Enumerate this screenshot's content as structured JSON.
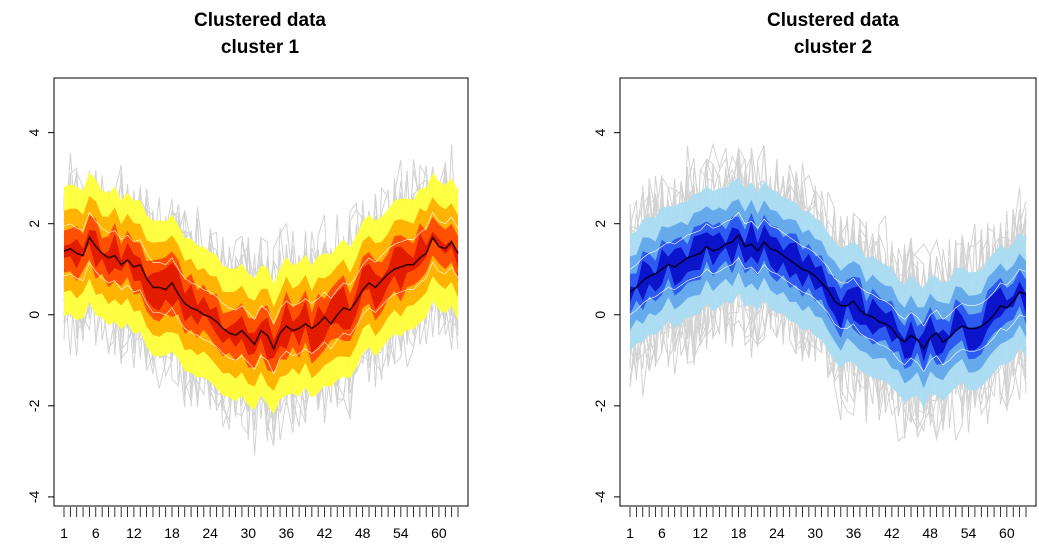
{
  "panels": [
    {
      "title_line1": "Clustered data",
      "title_line2": "cluster 1",
      "palette": "heat",
      "colors": {
        "outer": "#ffff3a",
        "mid": "#ffb000",
        "inner": "#ff4a00",
        "core": "#e21900",
        "median": "#3b0000",
        "background_lines": "#d3d3d3"
      }
    },
    {
      "title_line1": "Clustered data",
      "title_line2": "cluster 2",
      "palette": "blue",
      "colors": {
        "outer": "#a9dcf3",
        "mid": "#62a6ea",
        "inner": "#2a55f0",
        "core": "#0a10c8",
        "median": "#000035",
        "background_lines": "#d3d3d3"
      }
    }
  ],
  "chart_data": [
    {
      "type": "area",
      "title": "Clustered data\ncluster 1",
      "x_range": [
        1,
        62
      ],
      "x_tick_labels": [
        "1",
        "6",
        "12",
        "18",
        "24",
        "30",
        "36",
        "42",
        "48",
        "54",
        "60"
      ],
      "x_ticks": [
        1,
        6,
        12,
        18,
        24,
        30,
        36,
        42,
        48,
        54,
        60
      ],
      "ylim": [
        -4.2,
        5.2
      ],
      "y_ticks": [
        -4,
        -2,
        0,
        2,
        4
      ],
      "bands": {
        "center": [
          1.4,
          1.45,
          1.35,
          1.3,
          1.7,
          1.5,
          1.35,
          1.25,
          1.3,
          1.1,
          1.2,
          1.05,
          1.1,
          0.8,
          0.6,
          0.6,
          0.55,
          0.7,
          0.45,
          0.25,
          0.15,
          0.1,
          0.0,
          -0.05,
          -0.15,
          -0.3,
          -0.4,
          -0.45,
          -0.35,
          -0.5,
          -0.65,
          -0.35,
          -0.45,
          -0.75,
          -0.4,
          -0.25,
          -0.35,
          -0.3,
          -0.2,
          -0.3,
          -0.2,
          -0.05,
          -0.2,
          0.0,
          0.15,
          0.1,
          0.3,
          0.55,
          0.7,
          0.6,
          0.75,
          0.9,
          1.0,
          1.05,
          1.1,
          1.1,
          1.25,
          1.35,
          1.7,
          1.5,
          1.45,
          1.6,
          1.35
        ],
        "half_widths": [
          0.25,
          0.55,
          0.95,
          1.45
        ]
      },
      "noise_amplitude": 2.1
    },
    {
      "type": "area",
      "title": "Clustered data\ncluster 2",
      "x_range": [
        1,
        62
      ],
      "x_tick_labels": [
        "1",
        "6",
        "12",
        "18",
        "24",
        "30",
        "36",
        "42",
        "48",
        "54",
        "60"
      ],
      "x_ticks": [
        1,
        6,
        12,
        18,
        24,
        30,
        36,
        42,
        48,
        54,
        60
      ],
      "ylim": [
        -4.2,
        5.2
      ],
      "y_ticks": [
        -4,
        -2,
        0,
        2,
        4
      ],
      "bands": {
        "center": [
          0.5,
          0.6,
          0.75,
          0.85,
          0.9,
          1.0,
          1.1,
          1.05,
          1.15,
          1.25,
          1.3,
          1.35,
          1.5,
          1.4,
          1.45,
          1.55,
          1.6,
          1.75,
          1.5,
          1.55,
          1.4,
          1.6,
          1.45,
          1.4,
          1.3,
          1.2,
          1.1,
          1.0,
          0.95,
          0.85,
          0.7,
          0.55,
          0.3,
          0.2,
          0.2,
          0.3,
          0.1,
          0.0,
          -0.05,
          -0.15,
          -0.2,
          -0.3,
          -0.5,
          -0.6,
          -0.45,
          -0.55,
          -0.75,
          -0.5,
          -0.4,
          -0.6,
          -0.5,
          -0.35,
          -0.25,
          -0.3,
          -0.3,
          -0.25,
          -0.15,
          0.0,
          0.2,
          0.15,
          0.3,
          0.5,
          0.45
        ],
        "half_widths": [
          0.25,
          0.5,
          0.85,
          1.3
        ]
      },
      "noise_amplitude": 2.2
    }
  ]
}
